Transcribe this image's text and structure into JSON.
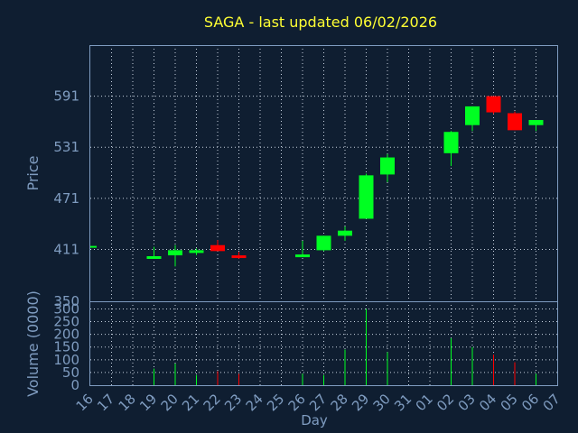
{
  "chart_data": {
    "type": "candlestick",
    "title": "SAGA - last updated 06/02/2026",
    "xlabel": "Day",
    "ylabel_price": "Price",
    "ylabel_volume": "Volume (0000)",
    "price_ticks": [
      350,
      411,
      471,
      531,
      591
    ],
    "price_range": [
      350,
      651
    ],
    "volume_ticks": [
      0,
      50,
      100,
      150,
      200,
      250,
      300
    ],
    "volume_range": [
      0,
      330
    ],
    "x_labels": [
      "16",
      "17",
      "18",
      "19",
      "20",
      "21",
      "22",
      "23",
      "24",
      "25",
      "26",
      "27",
      "28",
      "29",
      "30",
      "31",
      "01",
      "02",
      "03",
      "04",
      "05",
      "06",
      "07"
    ],
    "grid": true,
    "colors": {
      "up": "#00ff22",
      "down": "#ff0000",
      "title": "#ffff33",
      "axis": "#7f9cc0",
      "background": "#0f1e31"
    },
    "candles": [
      {
        "day": "16",
        "open": 414,
        "high": 414,
        "low": 414,
        "close": 414,
        "volume": 0
      },
      {
        "day": "19",
        "open": 403,
        "high": 414,
        "low": 400,
        "close": 403,
        "volume": 65
      },
      {
        "day": "20",
        "open": 404,
        "high": 416,
        "low": 391,
        "close": 410,
        "volume": 85
      },
      {
        "day": "21",
        "open": 409,
        "high": 412,
        "low": 404,
        "close": 410,
        "volume": 40
      },
      {
        "day": "22",
        "open": 416,
        "high": 422,
        "low": 409,
        "close": 409,
        "volume": 55
      },
      {
        "day": "23",
        "open": 404,
        "high": 408,
        "low": 400,
        "close": 401,
        "volume": 45
      },
      {
        "day": "26",
        "open": 403,
        "high": 421,
        "low": 403,
        "close": 405,
        "volume": 45
      },
      {
        "day": "27",
        "open": 410,
        "high": 427,
        "low": 409,
        "close": 427,
        "volume": 40
      },
      {
        "day": "28",
        "open": 427,
        "high": 438,
        "low": 421,
        "close": 433,
        "volume": 140
      },
      {
        "day": "29",
        "open": 447,
        "high": 500,
        "low": 447,
        "close": 498,
        "volume": 300
      },
      {
        "day": "30",
        "open": 499,
        "high": 523,
        "low": 490,
        "close": 519,
        "volume": 130
      },
      {
        "day": "02",
        "open": 524,
        "high": 550,
        "low": 509,
        "close": 549,
        "volume": 185
      },
      {
        "day": "03",
        "open": 557,
        "high": 579,
        "low": 550,
        "close": 579,
        "volume": 150
      },
      {
        "day": "04",
        "open": 591,
        "high": 591,
        "low": 570,
        "close": 572,
        "volume": 120
      },
      {
        "day": "05",
        "open": 571,
        "high": 573,
        "low": 551,
        "close": 551,
        "volume": 90
      },
      {
        "day": "06",
        "open": 557,
        "high": 563,
        "low": 550,
        "close": 563,
        "volume": 45
      }
    ]
  }
}
